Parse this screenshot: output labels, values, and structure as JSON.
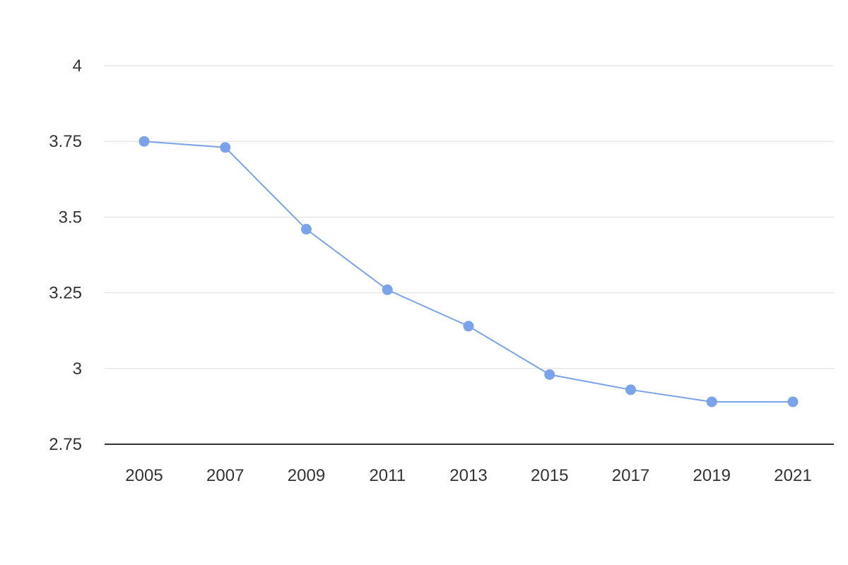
{
  "chart_data": {
    "type": "line",
    "title": "",
    "xlabel": "",
    "ylabel": "",
    "x": [
      "2005",
      "2007",
      "2009",
      "2011",
      "2013",
      "2015",
      "2017",
      "2019",
      "2021"
    ],
    "series": [
      {
        "values": [
          3.75,
          3.73,
          3.46,
          3.26,
          3.14,
          2.98,
          2.93,
          2.89,
          2.89
        ],
        "color": "#7aa3ea"
      }
    ],
    "ylim": [
      2.75,
      4
    ],
    "yticks": [
      "2.75",
      "3",
      "3.25",
      "3.5",
      "3.75",
      "4"
    ],
    "grid": true,
    "legend": "none"
  }
}
